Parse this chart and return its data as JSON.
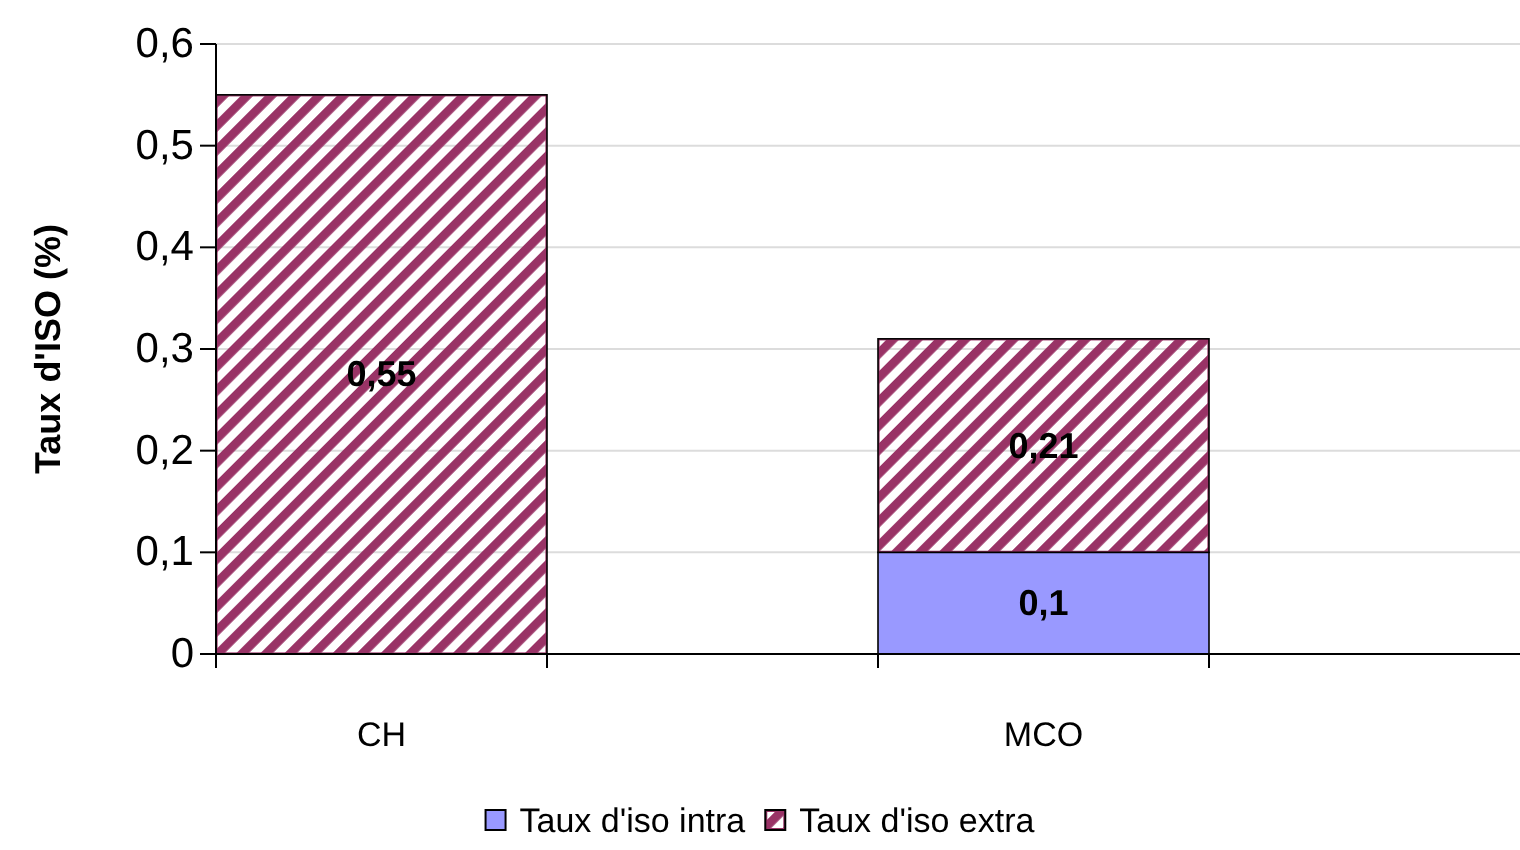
{
  "chart_data": {
    "type": "bar",
    "stacked": true,
    "ylabel": "Taux d'ISO (%)",
    "categories": [
      "CH",
      "MCO"
    ],
    "series": [
      {
        "name": "Taux d'iso intra",
        "color": "#9999ff",
        "values": [
          null,
          0.1
        ],
        "value_labels": [
          null,
          "0,1"
        ]
      },
      {
        "name": "Taux d'iso extra",
        "color": "#993366",
        "values": [
          0.55,
          0.21
        ],
        "value_labels": [
          "0,55",
          "0,21"
        ]
      }
    ],
    "ylim": [
      0,
      0.6
    ],
    "yticks": [
      0,
      {
        "value": 0.1,
        "label": "0,1"
      },
      {
        "value": 0.2,
        "label": "0,2"
      },
      {
        "value": 0.3,
        "label": "0,3"
      },
      {
        "value": 0.4,
        "label": "0,4"
      },
      {
        "value": 0.5,
        "label": "0,5"
      },
      {
        "value": 0.6,
        "label": "0,6"
      }
    ],
    "grid": "y",
    "legend": "bottom"
  }
}
